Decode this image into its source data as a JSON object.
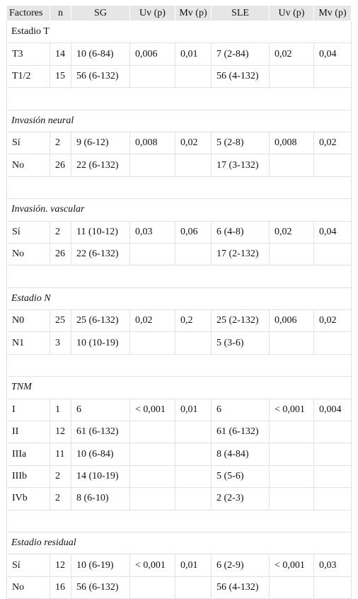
{
  "header": [
    "Factores",
    "n",
    "SG",
    "Uv (p)",
    "Mv (p)",
    "SLE",
    "Uv (p)",
    "Mv (p)"
  ],
  "groups": [
    {
      "title": "Estadio T",
      "rows": [
        [
          "T3",
          "14",
          "10 (6-84)",
          "0,006",
          "0,01",
          "7 (2-84)",
          "0,02",
          "0,04"
        ],
        [
          "T1/2",
          "15",
          "56 (6-132)",
          null,
          null,
          "56 (4-132)",
          null,
          null
        ]
      ]
    },
    {
      "title": "Invasión neural",
      "rows": [
        [
          "Sí",
          "2",
          "9 (6-12)",
          "0,008",
          "0,02",
          "5 (2-8)",
          "0,008",
          "0,02"
        ],
        [
          "No",
          "26",
          "22 (6-132)",
          null,
          null,
          "17 (3-132)",
          null,
          null
        ]
      ]
    },
    {
      "title": "Invasión. vascular",
      "rows": [
        [
          "Sí",
          "2",
          "11 (10-12)",
          "0,03",
          "0,06",
          "6 (4-8)",
          "0,02",
          "0,04"
        ],
        [
          "No",
          "26",
          "22 (6-132)",
          null,
          null,
          "17 (2-132)",
          null,
          null
        ]
      ]
    },
    {
      "title": "Estadio N",
      "rows": [
        [
          "N0",
          "25",
          "25 (6-132)",
          "0,02",
          "0,2",
          "25 (2-132)",
          "0,006",
          "0,02"
        ],
        [
          "N1",
          "3",
          "10 (10-19)",
          null,
          null,
          "5 (3-6)",
          null,
          null
        ]
      ]
    },
    {
      "title": "TNM",
      "rows": [
        [
          "I",
          "1",
          "6",
          "< 0,001",
          "0,01",
          "6",
          "< 0,001",
          "0,004"
        ],
        [
          "II",
          "12",
          "61 (6-132)",
          null,
          null,
          "61 (6-132)",
          null,
          null
        ],
        [
          "IIIa",
          "11",
          "10 (6-84)",
          null,
          null,
          "8 (4-84)",
          null,
          null
        ],
        [
          "IIIb",
          "2",
          "14 (10-19)",
          null,
          null,
          "5 (5-6)",
          null,
          null
        ],
        [
          "IVb",
          "2",
          "8 (6-10)",
          null,
          null,
          "2 (2-3)",
          null,
          null
        ]
      ]
    },
    {
      "title": "Estadio residual",
      "rows": [
        [
          "Sí",
          "12",
          "10 (6-19)",
          "< 0,001",
          "0,01",
          "6 (2-9)",
          "< 0,001",
          "0,03"
        ],
        [
          "No",
          "16",
          "56 (6-132)",
          null,
          null,
          "56 (4-132)",
          null,
          null
        ]
      ]
    }
  ]
}
